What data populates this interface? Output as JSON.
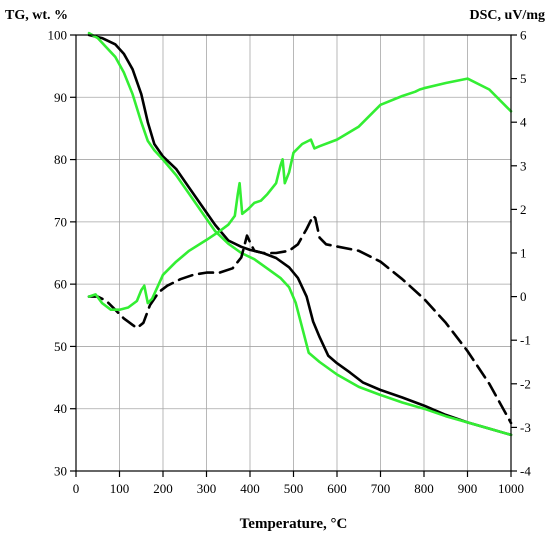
{
  "chart_data": {
    "type": "line",
    "title": "",
    "xlabel": "Temperature, °C",
    "ylabel_left": "TG, wt. %",
    "ylabel_right": "DSC, uV/mg",
    "xlim": [
      0,
      1000
    ],
    "ylim_left": [
      30,
      100
    ],
    "ylim_right": [
      -4,
      6
    ],
    "x_ticks": [
      0,
      100,
      200,
      300,
      400,
      500,
      600,
      700,
      800,
      900,
      1000
    ],
    "y_left_ticks": [
      30,
      40,
      50,
      60,
      70,
      80,
      90,
      100
    ],
    "y_right_ticks": [
      -4,
      -3,
      -2,
      -1,
      0,
      1,
      2,
      3,
      4,
      5,
      6
    ],
    "grid": true,
    "legend": "none",
    "series": [
      {
        "kind": "TG",
        "axis": "left",
        "color": "#000000",
        "style": "solid",
        "x": [
          30,
          60,
          90,
          110,
          130,
          150,
          165,
          180,
          200,
          230,
          260,
          290,
          320,
          350,
          380,
          400,
          430,
          460,
          490,
          510,
          530,
          545,
          560,
          580,
          600,
          630,
          660,
          700,
          750,
          800,
          850,
          900,
          950,
          1000
        ],
        "y": [
          100,
          99.5,
          98.5,
          97,
          94.5,
          90.5,
          86,
          82.5,
          80.5,
          78.5,
          75.5,
          72.5,
          69.5,
          67,
          66,
          65.5,
          65,
          64.2,
          62.7,
          61,
          58,
          54,
          51.5,
          48.5,
          47.3,
          45.8,
          44.2,
          43,
          41.8,
          40.5,
          39,
          37.8,
          36.8,
          35.8
        ]
      },
      {
        "kind": "TG",
        "axis": "left",
        "color": "#33ee33",
        "style": "solid",
        "x": [
          30,
          50,
          70,
          90,
          110,
          130,
          150,
          165,
          180,
          200,
          230,
          260,
          290,
          320,
          350,
          380,
          410,
          440,
          470,
          490,
          505,
          520,
          535,
          560,
          600,
          650,
          700,
          750,
          800,
          850,
          900,
          950,
          1000
        ],
        "y": [
          100.3,
          99.5,
          98,
          96.5,
          94,
          90.5,
          86,
          83,
          81.5,
          80,
          77.5,
          74.5,
          71.5,
          68.5,
          66.5,
          65,
          64,
          62.5,
          61,
          59.5,
          57,
          53,
          49,
          47.5,
          45.5,
          43.5,
          42.2,
          41,
          40,
          38.8,
          37.8,
          36.8,
          35.8
        ]
      },
      {
        "kind": "DSC",
        "axis": "right",
        "color": "#000000",
        "style": "dashed",
        "x": [
          30,
          50,
          70,
          90,
          110,
          130,
          140,
          155,
          170,
          190,
          210,
          240,
          270,
          300,
          330,
          360,
          380,
          393,
          400,
          410,
          430,
          460,
          490,
          510,
          530,
          545,
          550,
          560,
          575,
          600,
          650,
          700,
          750,
          800,
          850,
          900,
          950,
          1000
        ],
        "y": [
          0,
          0,
          -0.1,
          -0.3,
          -0.5,
          -0.65,
          -0.72,
          -0.6,
          -0.2,
          0.1,
          0.25,
          0.4,
          0.5,
          0.55,
          0.55,
          0.65,
          0.9,
          1.4,
          1.25,
          1.05,
          1.0,
          1.0,
          1.05,
          1.2,
          1.55,
          1.85,
          1.8,
          1.35,
          1.2,
          1.15,
          1.05,
          0.8,
          0.4,
          -0.05,
          -0.6,
          -1.25,
          -2.0,
          -2.9
        ]
      },
      {
        "kind": "DSC",
        "axis": "right",
        "color": "#33ee33",
        "style": "solid",
        "x": [
          30,
          45,
          60,
          80,
          100,
          120,
          140,
          150,
          157,
          165,
          175,
          200,
          230,
          260,
          300,
          330,
          350,
          365,
          372,
          376,
          382,
          395,
          410,
          425,
          440,
          460,
          470,
          475,
          480,
          490,
          500,
          520,
          540,
          548,
          560,
          600,
          650,
          700,
          750,
          780,
          790,
          800,
          850,
          900,
          950,
          990,
          1000
        ],
        "y": [
          0,
          0.05,
          -0.15,
          -0.3,
          -0.3,
          -0.25,
          -0.1,
          0.15,
          0.25,
          -0.15,
          -0.05,
          0.5,
          0.8,
          1.05,
          1.3,
          1.5,
          1.65,
          1.85,
          2.35,
          2.6,
          1.9,
          2.0,
          2.15,
          2.2,
          2.35,
          2.6,
          3.0,
          3.15,
          2.6,
          2.85,
          3.3,
          3.5,
          3.6,
          3.4,
          3.45,
          3.6,
          3.9,
          4.4,
          4.6,
          4.7,
          4.75,
          4.78,
          4.9,
          5.0,
          4.75,
          4.35,
          4.25
        ]
      }
    ]
  }
}
